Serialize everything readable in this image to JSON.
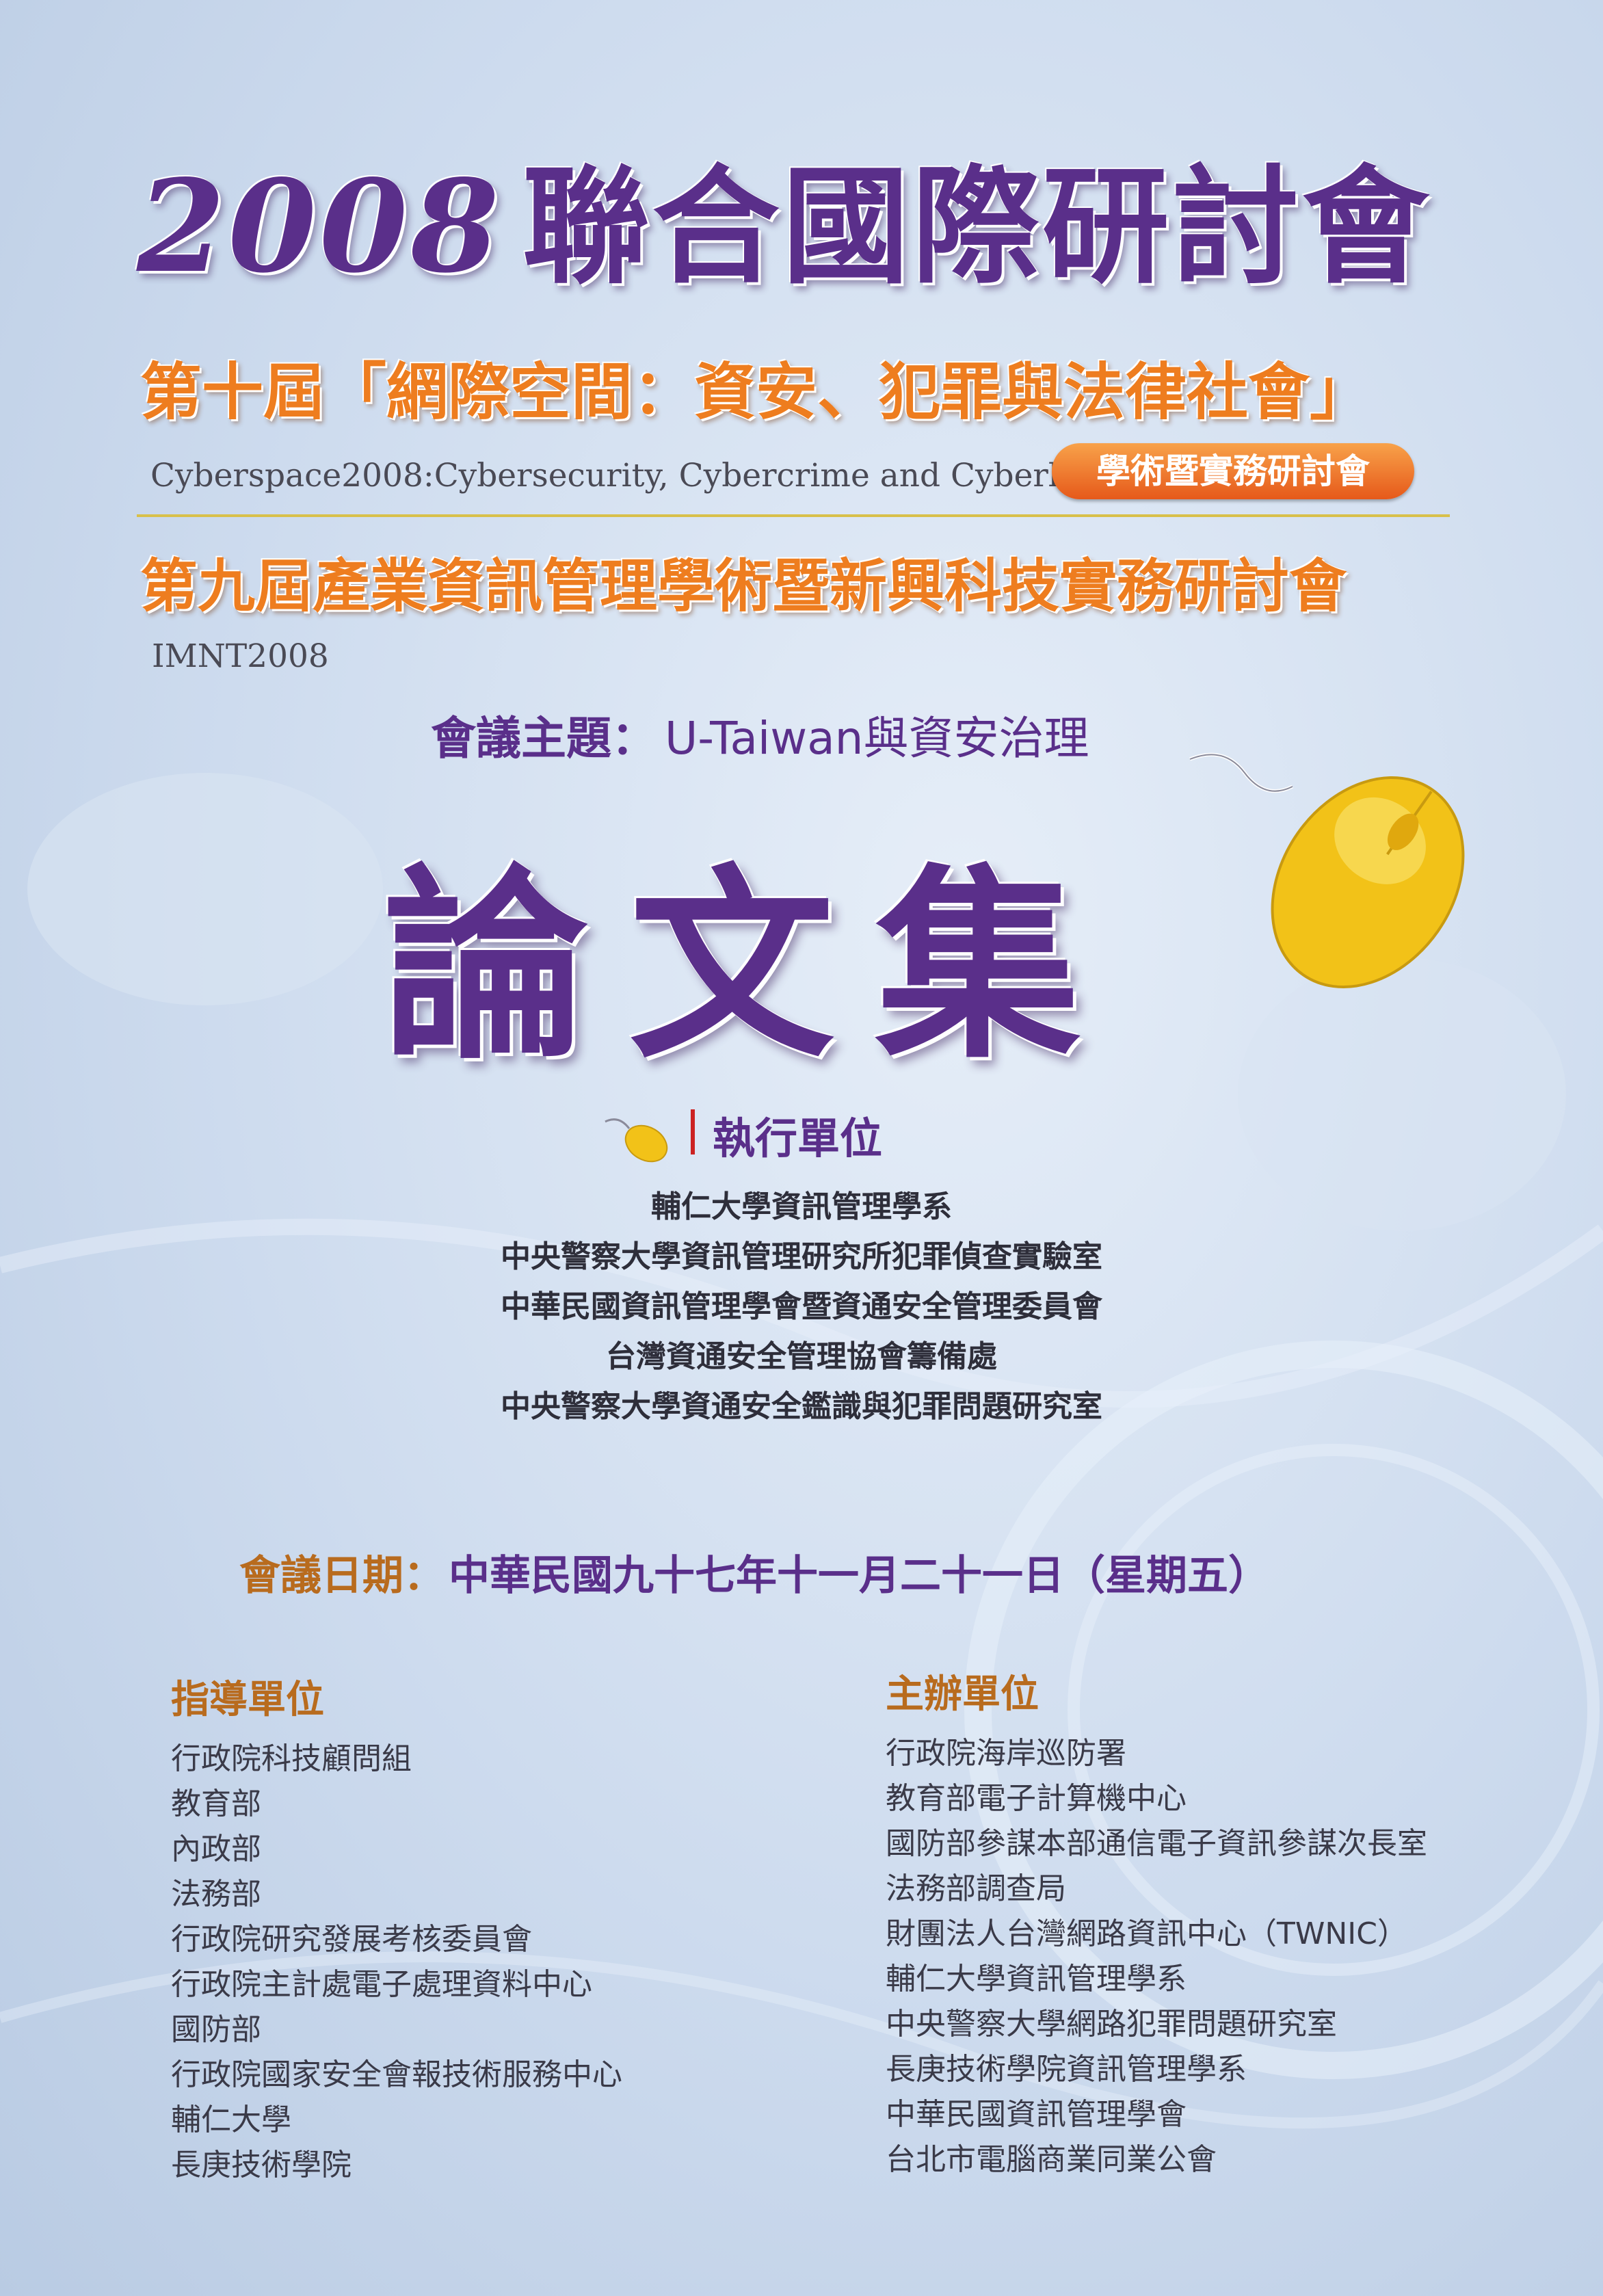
{
  "main_title": {
    "year": "2008",
    "text": "聯合國際研討會"
  },
  "subtitle_1": "第十屆「網際空間：資安、犯罪與法律社會」",
  "subtitle_1_en": "Cyberspace2008:Cybersecurity, Cybercrime and Cyberlaw",
  "badge": "學術暨實務研討會",
  "subtitle_2": "第九屆產業資訊管理學術暨新興科技實務研討會",
  "subtitle_2_en": "IMNT2008",
  "theme": {
    "label": "會議主題：",
    "value": "U-Taiwan與資安治理"
  },
  "big_title": "論文集",
  "executing_units": {
    "heading": "執行單位",
    "items": [
      "輔仁大學資訊管理學系",
      "中央警察大學資訊管理研究所犯罪偵查實驗室",
      "中華民國資訊管理學會暨資通安全管理委員會",
      "台灣資通安全管理協會籌備處",
      "中央警察大學資通安全鑑識與犯罪問題研究室"
    ]
  },
  "conference_date": {
    "label": "會議日期：",
    "value": "中華民國九十七年十一月二十一日（星期五）"
  },
  "guiding_units": {
    "heading": "指導單位",
    "items": [
      "行政院科技顧問組",
      "教育部",
      "內政部",
      "法務部",
      "行政院研究發展考核委員會",
      "行政院主計處電子處理資料中心",
      "國防部",
      "行政院國家安全會報技術服務中心",
      "輔仁大學",
      "長庚技術學院"
    ]
  },
  "organizers": {
    "heading": "主辦單位",
    "items": [
      "行政院海岸巡防署",
      "教育部電子計算機中心",
      "國防部參謀本部通信電子資訊參謀次長室",
      "法務部調查局",
      "財團法人台灣網路資訊中心（TWNIC）",
      "輔仁大學資訊管理學系",
      "中央警察大學網路犯罪問題研究室",
      "長庚技術學院資訊管理學系",
      "中華民國資訊管理學會",
      "台北市電腦商業同業公會"
    ]
  },
  "colors": {
    "purple": "#5a2f8a",
    "orange": "#ee7d1f",
    "brown": "#b86b1e",
    "background": "#cddbee",
    "mouse": "#f2c218"
  },
  "icons": [
    "computer-mouse-icon",
    "small-mouse-icon"
  ]
}
